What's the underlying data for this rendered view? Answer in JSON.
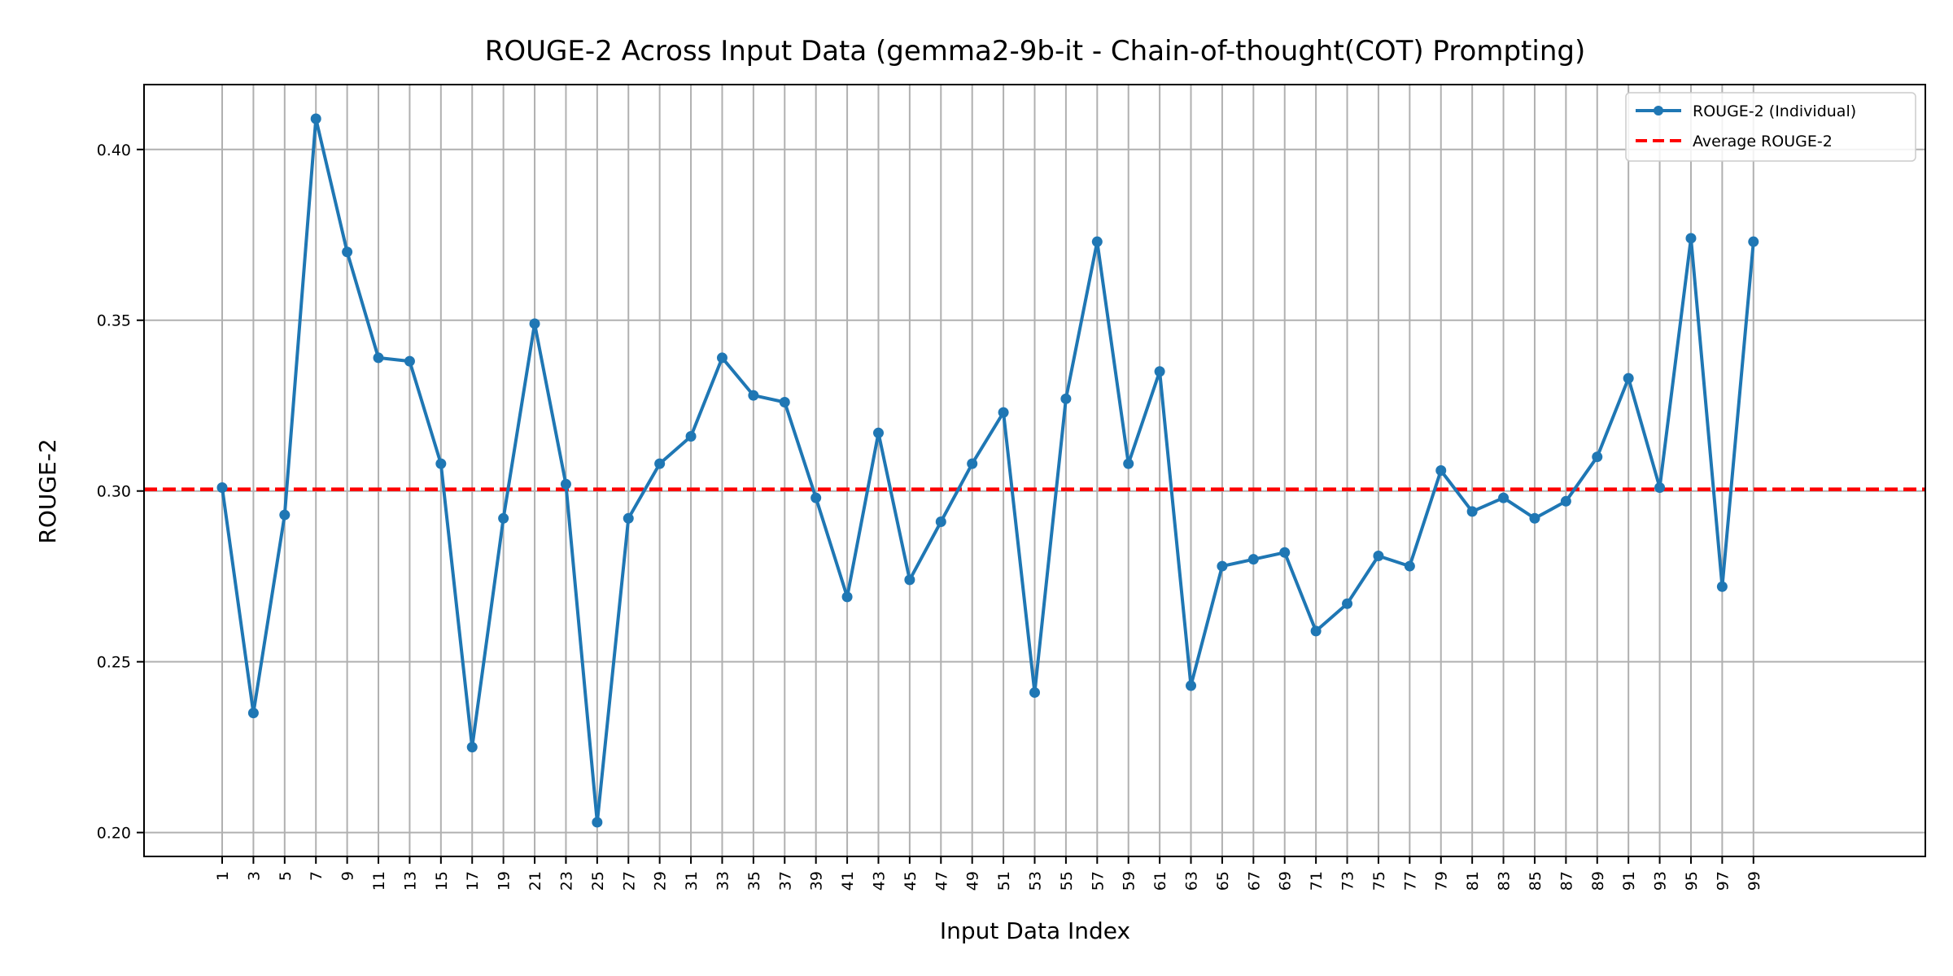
{
  "colors": {
    "series": "#1f77b4",
    "average": "#ff0000",
    "grid": "#b0b0b0",
    "axis": "#000000",
    "background": "#ffffff"
  },
  "chart_data": {
    "type": "line",
    "title": "ROUGE-2 Across Input Data (gemma2-9b-it - Chain-of-thought(COT) Prompting)",
    "xlabel": "Input Data Index",
    "ylabel": "ROUGE-2",
    "xlim": [
      -4,
      110
    ],
    "ylim": [
      0.193,
      0.419
    ],
    "yticks": [
      0.2,
      0.25,
      0.3,
      0.35,
      0.4
    ],
    "ytick_labels": [
      "0.20",
      "0.25",
      "0.30",
      "0.35",
      "0.40"
    ],
    "xticks": [
      1,
      3,
      5,
      7,
      9,
      11,
      13,
      15,
      17,
      19,
      21,
      23,
      25,
      27,
      29,
      31,
      33,
      35,
      37,
      39,
      41,
      43,
      45,
      47,
      49,
      51,
      53,
      55,
      57,
      59,
      61,
      63,
      65,
      67,
      69,
      71,
      73,
      75,
      77,
      79,
      81,
      83,
      85,
      87,
      89,
      91,
      93,
      95,
      97,
      99
    ],
    "xtick_labels": [
      "1",
      "3",
      "5",
      "7",
      "9",
      "11",
      "13",
      "15",
      "17",
      "19",
      "21",
      "23",
      "25",
      "27",
      "29",
      "31",
      "33",
      "35",
      "37",
      "39",
      "41",
      "43",
      "45",
      "47",
      "49",
      "51",
      "53",
      "55",
      "57",
      "59",
      "61",
      "63",
      "65",
      "67",
      "69",
      "71",
      "73",
      "75",
      "77",
      "79",
      "81",
      "83",
      "85",
      "87",
      "89",
      "91",
      "93",
      "95",
      "97",
      "99"
    ],
    "grid": true,
    "legend_position": "top-right",
    "series": [
      {
        "name": "ROUGE-2 (Individual)",
        "style": "solid line with circle markers",
        "x": [
          1,
          3,
          5,
          7,
          9,
          11,
          13,
          15,
          17,
          19,
          21,
          23,
          25,
          27,
          29,
          31,
          33,
          35,
          37,
          39,
          41,
          43,
          45,
          47,
          49,
          51,
          53,
          55,
          57,
          59,
          61,
          63,
          65,
          67,
          69,
          71,
          73,
          75,
          77,
          79,
          81,
          83,
          85,
          87,
          89,
          91,
          93,
          95,
          97,
          99
        ],
        "values": [
          0.301,
          0.235,
          0.293,
          0.409,
          0.37,
          0.339,
          0.338,
          0.308,
          0.225,
          0.292,
          0.349,
          0.302,
          0.203,
          0.292,
          0.308,
          0.316,
          0.339,
          0.328,
          0.326,
          0.298,
          0.269,
          0.317,
          0.274,
          0.291,
          0.308,
          0.323,
          0.241,
          0.327,
          0.373,
          0.308,
          0.335,
          0.243,
          0.278,
          0.28,
          0.282,
          0.259,
          0.267,
          0.281,
          0.278,
          0.306,
          0.294,
          0.298,
          0.292,
          0.297,
          0.31,
          0.333,
          0.301,
          0.374,
          0.272,
          0.373
        ]
      },
      {
        "name": "Average ROUGE-2",
        "style": "dashed horizontal line",
        "value": 0.3005
      }
    ]
  }
}
